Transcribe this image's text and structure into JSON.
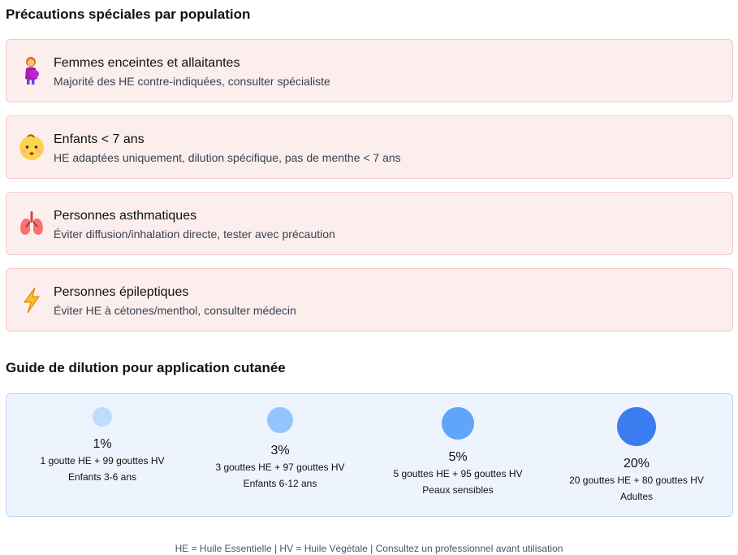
{
  "precautions": {
    "title": "Précautions spéciales par population",
    "items": [
      {
        "icon": "pregnant-woman-icon",
        "title": "Femmes enceintes et allaitantes",
        "description": "Majorité des HE contre-indiquées, consulter spécialiste"
      },
      {
        "icon": "baby-icon",
        "title": "Enfants < 7 ans",
        "description": "HE adaptées uniquement, dilution spécifique, pas de menthe < 7 ans"
      },
      {
        "icon": "lungs-icon",
        "title": "Personnes asthmatiques",
        "description": "Éviter diffusion/inhalation directe, tester avec précaution"
      },
      {
        "icon": "lightning-icon",
        "title": "Personnes épileptiques",
        "description": "Éviter HE à cétones/menthol, consulter médecin"
      }
    ]
  },
  "dilution": {
    "title": "Guide de dilution pour application cutanée",
    "levels": [
      {
        "percent": "1%",
        "drops": "1 goutte HE + 99 gouttes HV",
        "audience": "Enfants 3-6 ans",
        "color": "#bfdbfe"
      },
      {
        "percent": "3%",
        "drops": "3 gouttes HE + 97 gouttes HV",
        "audience": "Enfants 6-12 ans",
        "color": "#93c5fd"
      },
      {
        "percent": "5%",
        "drops": "5 gouttes HE + 95 gouttes HV",
        "audience": "Peaux sensibles",
        "color": "#60a5fa"
      },
      {
        "percent": "20%",
        "drops": "20 gouttes HE + 80 gouttes HV",
        "audience": "Adultes",
        "color": "#3b82f6"
      }
    ]
  },
  "footer": {
    "text": "HE = Huile Essentielle | HV = Huile Végétale | Consultez un professionnel avant utilisation"
  }
}
